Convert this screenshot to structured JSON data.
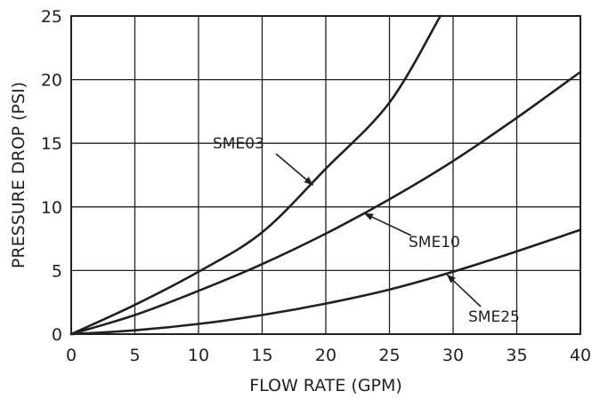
{
  "chart_data": {
    "type": "line",
    "title": "",
    "xlabel": "FLOW RATE (GPM)",
    "ylabel": "PRESSURE DROP (PSI)",
    "xlim": [
      0,
      40
    ],
    "ylim": [
      0,
      25
    ],
    "xticks": [
      0,
      5,
      10,
      15,
      20,
      25,
      30,
      35,
      40
    ],
    "yticks": [
      0,
      5,
      10,
      15,
      20,
      25
    ],
    "grid": true,
    "legend": "none",
    "series": [
      {
        "name": "SME03",
        "x": [
          0,
          5,
          10,
          15,
          20,
          25,
          29
        ],
        "y": [
          0,
          2.3,
          4.9,
          8.0,
          13.0,
          18.2,
          25
        ]
      },
      {
        "name": "SME10",
        "x": [
          0,
          5,
          10,
          15,
          20,
          25,
          30,
          35,
          40
        ],
        "y": [
          0,
          1.5,
          3.4,
          5.5,
          7.9,
          10.6,
          13.6,
          17.0,
          20.6
        ]
      },
      {
        "name": "SME25",
        "x": [
          0,
          5,
          10,
          15,
          20,
          25,
          30,
          35,
          40
        ],
        "y": [
          0,
          0.3,
          0.8,
          1.5,
          2.4,
          3.5,
          4.9,
          6.5,
          8.2
        ]
      }
    ],
    "annotations": [
      {
        "text": "SME03",
        "series": "SME03",
        "x": 19,
        "y": 11.7
      },
      {
        "text": "SME10",
        "series": "SME10",
        "x": 23,
        "y": 9.5
      },
      {
        "text": "SME25",
        "series": "SME25",
        "x": 29.5,
        "y": 4.7
      }
    ]
  }
}
